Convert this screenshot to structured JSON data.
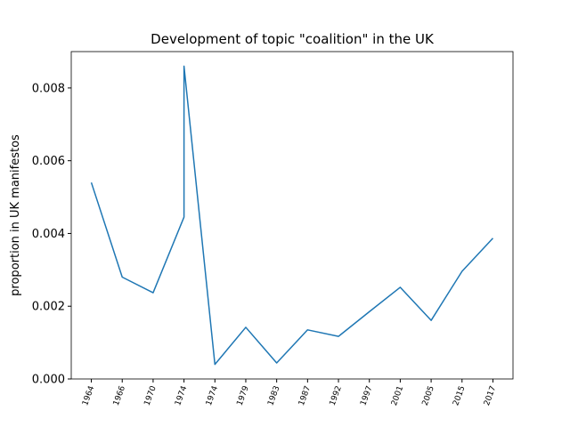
{
  "chart_data": {
    "type": "line",
    "title": "Development of topic \"coalition\" in the UK",
    "y_label": "proportion in UK manifestos",
    "x": [
      0,
      1,
      2,
      3,
      3,
      4,
      5,
      6,
      7,
      8,
      9,
      10,
      11,
      12,
      13
    ],
    "values": [
      0.0054,
      0.0028,
      0.00237,
      0.00445,
      0.0086,
      0.0004,
      0.00142,
      0.00044,
      0.00135,
      0.00117,
      0.00185,
      0.00252,
      0.00161,
      0.00296,
      0.00387
    ],
    "color": "#1f77b4",
    "xlim": [
      -0.65,
      13.65
    ],
    "xticks": [
      {
        "value": 0,
        "label": "1964"
      },
      {
        "value": 1,
        "label": "1966"
      },
      {
        "value": 2,
        "label": "1970"
      },
      {
        "value": 3,
        "label": "1974"
      },
      {
        "value": 4,
        "label": "1974"
      },
      {
        "value": 5,
        "label": "1979"
      },
      {
        "value": 6,
        "label": "1983"
      },
      {
        "value": 7,
        "label": "1987"
      },
      {
        "value": 8,
        "label": "1992"
      },
      {
        "value": 9,
        "label": "1997"
      },
      {
        "value": 10,
        "label": "2001"
      },
      {
        "value": 11,
        "label": "2005"
      },
      {
        "value": 12,
        "label": "2015"
      },
      {
        "value": 13,
        "label": "2017"
      }
    ],
    "ylim": [
      0,
      0.009
    ],
    "yticks": [
      {
        "value": 0,
        "label": "0.000"
      },
      {
        "value": 0.002,
        "label": "0.002"
      },
      {
        "value": 0.004,
        "label": "0.004"
      },
      {
        "value": 0.006,
        "label": "0.006"
      },
      {
        "value": 0.008,
        "label": "0.008"
      }
    ],
    "grid": false
  }
}
